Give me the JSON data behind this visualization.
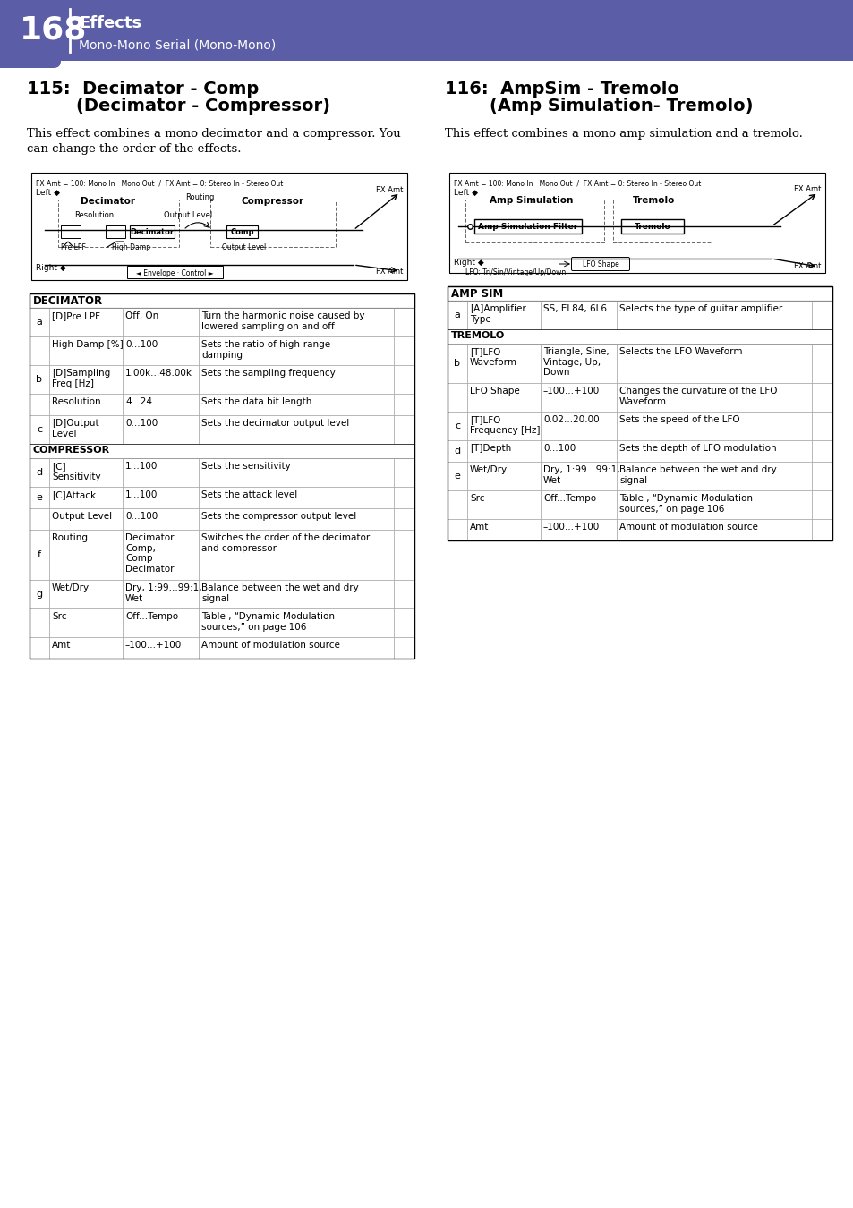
{
  "page_num": "168",
  "section": "Effects",
  "subsection": "Mono-Mono Serial (Mono-Mono)",
  "header_bg": "#5b5ea6",
  "header_text_color": "#ffffff",
  "left_title_num": "115:",
  "left_title_line1": "Decimator - Comp",
  "left_title_line2": "(Decimator - Compressor)",
  "left_desc": "This effect combines a mono decimator and a compressor. You\ncan change the order of the effects.",
  "right_title_num": "116:",
  "right_title_line1": "AmpSim - Tremolo",
  "right_title_line2": "(Amp Simulation- Tremolo)",
  "right_desc": "This effect combines a mono amp simulation and a tremolo.",
  "decimator_table_header": "DECIMATOR",
  "decimator_rows": [
    [
      "a",
      "[D]Pre LPF",
      "Off, On",
      "Turn the harmonic noise caused by\nlowered sampling on and off",
      ""
    ],
    [
      "a",
      "High Damp [%]",
      "0...100",
      "Sets the ratio of high-range\ndamping",
      ""
    ],
    [
      "b",
      "[D]Sampling\nFreq [Hz]",
      "1.00k...48.00k",
      "Sets the sampling frequency",
      ""
    ],
    [
      "b",
      "Resolution",
      "4...24",
      "Sets the data bit length",
      ""
    ],
    [
      "c",
      "[D]Output\nLevel",
      "0...100",
      "Sets the decimator output level",
      ""
    ],
    [
      "COMPRESSOR",
      "",
      "",
      "",
      ""
    ],
    [
      "d",
      "[C]\nSensitivity",
      "1...100",
      "Sets the sensitivity",
      ""
    ],
    [
      "e",
      "[C]Attack",
      "1...100",
      "Sets the attack level",
      ""
    ],
    [
      "e",
      "Output Level",
      "0...100",
      "Sets the compressor output level",
      ""
    ],
    [
      "f",
      "Routing",
      "Decimator\nComp,\nComp\nDecimator",
      "Switches the order of the decimator\nand compressor",
      ""
    ],
    [
      "g",
      "Wet/Dry",
      "Dry, 1:99...99:1,\nWet",
      "Balance between the wet and dry\nsignal",
      ""
    ],
    [
      "g",
      "Src",
      "Off...Tempo",
      "Table , “Dynamic Modulation\nsources,” on page 106",
      ""
    ],
    [
      "g",
      "Amt",
      "–100...+100",
      "Amount of modulation source",
      ""
    ]
  ],
  "ampsim_table_header": "AMP SIM",
  "ampsim_rows": [
    [
      "a",
      "[A]Amplifier\nType",
      "SS, EL84, 6L6",
      "Selects the type of guitar amplifier",
      ""
    ],
    [
      "TREMOLO",
      "",
      "",
      "",
      ""
    ],
    [
      "b",
      "[T]LFO\nWaveform",
      "Triangle, Sine,\nVintage, Up,\nDown",
      "Selects the LFO Waveform",
      ""
    ],
    [
      "b",
      "LFO Shape",
      "–100...+100",
      "Changes the curvature of the LFO\nWaveform",
      ""
    ],
    [
      "c",
      "[T]LFO\nFrequency [Hz]",
      "0.02...20.00",
      "Sets the speed of the LFO",
      ""
    ],
    [
      "d",
      "[T]Depth",
      "0...100",
      "Sets the depth of LFO modulation",
      ""
    ],
    [
      "e",
      "Wet/Dry",
      "Dry, 1:99...99:1,\nWet",
      "Balance between the wet and dry\nsignal",
      ""
    ],
    [
      "e",
      "Src",
      "Off...Tempo",
      "Table , “Dynamic Modulation\nsources,” on page 106",
      ""
    ],
    [
      "e",
      "Amt",
      "–100...+100",
      "Amount of modulation source",
      ""
    ]
  ]
}
